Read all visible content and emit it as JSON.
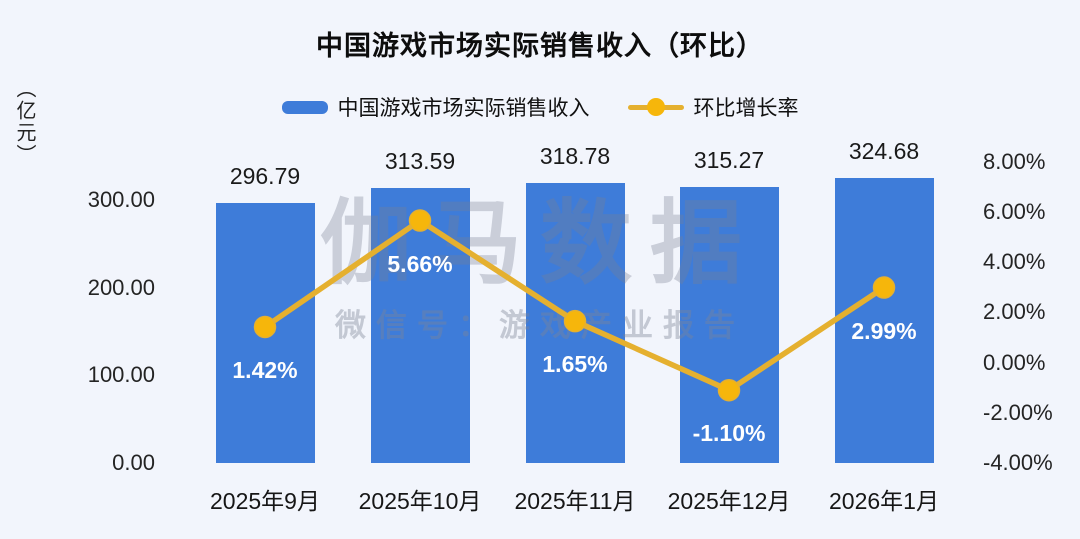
{
  "title": "中国游戏市场实际销售收入（环比）",
  "y_axis_unit": "（亿元）",
  "legend": {
    "bar_label": "中国游戏市场实际销售收入",
    "line_label": "环比增长率"
  },
  "watermark": {
    "main": "伽马数据",
    "sub": "微信号：游戏产业报告"
  },
  "colors": {
    "background": "#F2F5FC",
    "bar": "#3E7CD9",
    "line": "#E5B02F",
    "marker": "#F6B60B",
    "bar_value_text": "#1A1A1A",
    "point_label_text": "#FFFFFF",
    "watermark": "#78809I"
  },
  "chart_data": {
    "type": "bar",
    "subtype": "bar+line dual axis",
    "title": "中国游戏市场实际销售收入（环比）",
    "categories": [
      "2025年9月",
      "2025年10月",
      "2025年11月",
      "2025年12月",
      "2026年1月"
    ],
    "series": [
      {
        "name": "中国游戏市场实际销售收入",
        "type": "bar",
        "axis": "left",
        "unit": "亿元",
        "values": [
          296.79,
          313.59,
          318.78,
          315.27,
          324.68
        ],
        "labels": [
          "296.79",
          "313.59",
          "318.78",
          "315.27",
          "324.68"
        ]
      },
      {
        "name": "环比增长率",
        "type": "line",
        "axis": "right",
        "unit": "%",
        "values": [
          1.42,
          5.66,
          1.65,
          -1.1,
          2.99
        ],
        "labels": [
          "1.42%",
          "5.66%",
          "1.65%",
          "-1.10%",
          "2.99%"
        ]
      }
    ],
    "left_axis": {
      "range": [
        0,
        350
      ],
      "ticks": [
        {
          "v": 300,
          "label": "300.00"
        },
        {
          "v": 200,
          "label": "200.00"
        },
        {
          "v": 100,
          "label": "100.00"
        },
        {
          "v": 0,
          "label": "0.00"
        }
      ]
    },
    "right_axis": {
      "range": [
        -4,
        8
      ],
      "ticks": [
        {
          "v": 8,
          "label": "8.00%"
        },
        {
          "v": 6,
          "label": "6.00%"
        },
        {
          "v": 4,
          "label": "4.00%"
        },
        {
          "v": 2,
          "label": "2.00%"
        },
        {
          "v": 0,
          "label": "0.00%"
        },
        {
          "v": -2,
          "label": "-2.00%"
        },
        {
          "v": -4,
          "label": "-4.00%"
        }
      ]
    },
    "grid": false,
    "legend_position": "top"
  }
}
